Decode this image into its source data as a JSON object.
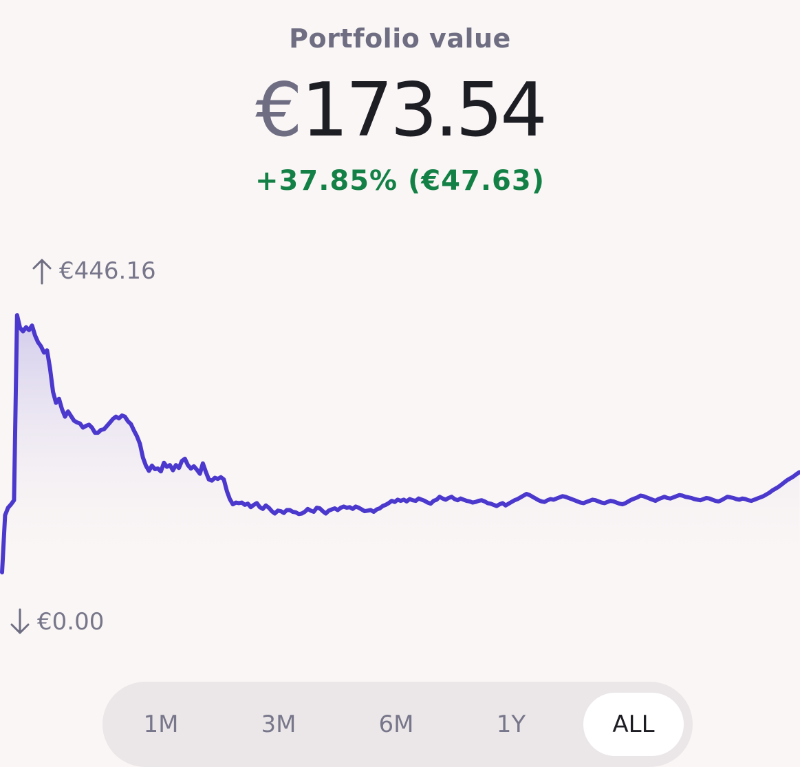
{
  "header": {
    "title": "Portfolio value",
    "currency_symbol": "€",
    "value": "173.54",
    "change": "+37.85% (€47.63)"
  },
  "bounds": {
    "high": "€446.16",
    "low": "€0.00",
    "high_icon": "arrow-up-icon",
    "low_icon": "arrow-down-icon"
  },
  "chart_data": {
    "type": "area",
    "ylim": [
      0,
      446.16
    ],
    "values": [
      0,
      99,
      112,
      118,
      125,
      446,
      424,
      418,
      425,
      420,
      428,
      411,
      399,
      392,
      381,
      385,
      354,
      313,
      294,
      301,
      283,
      270,
      279,
      271,
      263,
      260,
      258,
      251,
      254,
      256,
      251,
      242,
      242,
      247,
      248,
      254,
      260,
      266,
      270,
      267,
      272,
      270,
      262,
      257,
      246,
      236,
      223,
      199,
      185,
      176,
      185,
      179,
      180,
      175,
      190,
      183,
      186,
      177,
      186,
      181,
      193,
      197,
      186,
      180,
      184,
      178,
      171,
      189,
      174,
      161,
      159,
      164,
      162,
      165,
      161,
      141,
      127,
      118,
      121,
      120,
      121,
      117,
      119,
      113,
      117,
      120,
      113,
      110,
      116,
      112,
      106,
      102,
      107,
      106,
      103,
      108,
      108,
      105,
      104,
      101,
      102,
      105,
      110,
      107,
      105,
      112,
      111,
      106,
      102,
      107,
      109,
      111,
      108,
      112,
      114,
      112,
      113,
      110,
      114,
      112,
      109,
      106,
      107,
      108,
      105,
      109,
      111,
      115,
      117,
      120,
      124,
      122,
      126,
      124,
      126,
      123,
      127,
      125,
      124,
      128,
      126,
      124,
      121,
      119,
      124,
      126,
      131,
      128,
      126,
      129,
      131,
      127,
      125,
      128,
      126,
      124,
      123,
      121,
      122,
      124,
      125,
      123,
      120,
      119,
      117,
      115,
      118,
      120,
      116,
      119,
      122,
      125,
      127,
      130,
      133,
      136,
      134,
      131,
      128,
      125,
      123,
      122,
      125,
      127,
      126,
      128,
      130,
      132,
      131,
      129,
      127,
      125,
      123,
      121,
      120,
      122,
      124,
      126,
      125,
      123,
      121,
      120,
      122,
      124,
      123,
      121,
      119,
      118,
      120,
      123,
      126,
      128,
      130,
      133,
      132,
      130,
      128,
      126,
      124,
      127,
      129,
      131,
      129,
      128,
      130,
      132,
      134,
      133,
      131,
      130,
      129,
      127,
      126,
      125,
      127,
      129,
      128,
      126,
      124,
      123,
      125,
      128,
      131,
      130,
      129,
      127,
      126,
      128,
      127,
      125,
      124,
      126,
      128,
      130,
      132,
      135,
      138,
      142,
      145,
      148,
      152,
      156,
      160,
      163,
      166,
      170,
      173.54
    ]
  },
  "colors": {
    "line": "#4b38cc",
    "area_top": "#cfc8ec",
    "positive": "#138146",
    "muted": "#6e6d82"
  },
  "range": {
    "options": [
      "1M",
      "3M",
      "6M",
      "1Y",
      "ALL"
    ],
    "selected": "ALL"
  }
}
